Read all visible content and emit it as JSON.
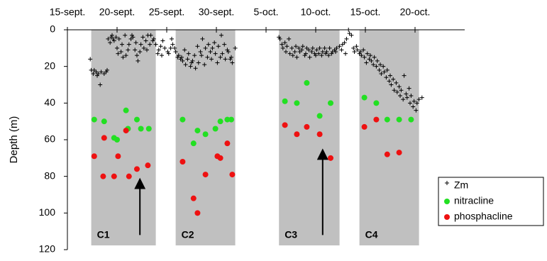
{
  "chart_data": {
    "type": "scatter",
    "ylabel": "Depth (m)",
    "xlim": [
      15,
      55
    ],
    "ylim": [
      0,
      120
    ],
    "y_inverted": true,
    "xticks": [
      {
        "value": 15,
        "label": "15-sept."
      },
      {
        "value": 20,
        "label": "20-sept."
      },
      {
        "value": 25,
        "label": "25-sept."
      },
      {
        "value": 30,
        "label": "30-sept."
      },
      {
        "value": 35,
        "label": "5-oct."
      },
      {
        "value": 40,
        "label": "10-oct."
      },
      {
        "value": 45,
        "label": "15-oct."
      },
      {
        "value": 50,
        "label": "20-oct."
      }
    ],
    "yticks": [
      0,
      20,
      40,
      60,
      80,
      100,
      120
    ],
    "regions": [
      {
        "label": "C1",
        "x": [
          17.4,
          23.9
        ],
        "color": "#c0c0c0"
      },
      {
        "label": "C2",
        "x": [
          25.9,
          31.9
        ],
        "color": "#c0c0c0"
      },
      {
        "label": "C3",
        "x": [
          36.3,
          42.4
        ],
        "color": "#c0c0c0"
      },
      {
        "label": "C4",
        "x": [
          44.4,
          50.4
        ],
        "color": "#c0c0c0"
      }
    ],
    "arrows": [
      {
        "x": 22.3,
        "y": [
          112,
          80
        ]
      },
      {
        "x": 40.7,
        "y": [
          112,
          64
        ]
      }
    ],
    "legend": "lower right",
    "series": [
      {
        "name": "Zm",
        "marker": "cross",
        "color": "#000000",
        "x": [
          17.3,
          17.4,
          17.6,
          17.7,
          17.9,
          18.0,
          18.1,
          18.3,
          18.4,
          18.7,
          18.9,
          19.0,
          19.1,
          19.3,
          19.4,
          19.5,
          19.6,
          19.7,
          19.9,
          20.0,
          20.1,
          20.2,
          20.4,
          20.5,
          20.6,
          20.8,
          20.9,
          21.1,
          21.2,
          21.4,
          21.5,
          21.6,
          21.8,
          21.9,
          22.0,
          22.1,
          22.3,
          22.4,
          22.6,
          22.7,
          22.9,
          23.0,
          23.1,
          23.3,
          23.4,
          23.6,
          23.7,
          23.9,
          24.1,
          24.2,
          24.4,
          24.5,
          24.6,
          24.8,
          25.1,
          25.2,
          25.4,
          25.5,
          25.6,
          25.8,
          25.9,
          26.1,
          26.2,
          26.4,
          26.5,
          26.6,
          26.8,
          26.9,
          27.1,
          27.2,
          27.4,
          27.5,
          27.6,
          27.8,
          27.9,
          28.1,
          28.2,
          28.4,
          28.5,
          28.6,
          28.8,
          28.9,
          29.1,
          29.2,
          29.4,
          29.5,
          29.6,
          29.8,
          29.9,
          30.1,
          30.2,
          30.4,
          30.5,
          30.6,
          30.8,
          30.9,
          31.1,
          31.2,
          31.4,
          31.5,
          31.6,
          31.9,
          36.3,
          36.4,
          36.6,
          36.7,
          36.9,
          37.0,
          37.1,
          37.3,
          37.4,
          37.6,
          37.7,
          37.9,
          38.0,
          38.1,
          38.3,
          38.4,
          38.6,
          38.7,
          38.9,
          39.0,
          39.1,
          39.3,
          39.4,
          39.6,
          39.7,
          39.9,
          40.0,
          40.1,
          40.3,
          40.4,
          40.6,
          40.7,
          40.9,
          41.0,
          41.1,
          41.3,
          41.4,
          41.6,
          41.7,
          41.9,
          42.0,
          42.1,
          42.4,
          42.6,
          42.7,
          42.9,
          43.0,
          43.1,
          43.3,
          43.4,
          43.6,
          43.8,
          43.9,
          44.1,
          44.2,
          44.4,
          44.5,
          44.6,
          44.8,
          44.9,
          45.1,
          45.2,
          45.4,
          45.5,
          45.6,
          45.8,
          45.9,
          46.1,
          46.2,
          46.4,
          46.5,
          46.6,
          46.8,
          46.9,
          47.1,
          47.2,
          47.4,
          47.5,
          47.6,
          47.8,
          47.9,
          48.1,
          48.2,
          48.4,
          48.5,
          48.6,
          48.8,
          48.9,
          49.1,
          49.2,
          49.4,
          49.5,
          49.6,
          49.8,
          49.9,
          50.1,
          50.2,
          50.4,
          50.7
        ],
        "values": [
          16,
          22,
          24,
          22,
          23,
          25,
          24,
          30,
          23,
          24,
          23,
          22,
          5,
          7,
          4,
          3,
          5,
          6,
          4,
          10,
          13,
          5,
          12,
          8,
          15,
          3,
          14,
          11,
          8,
          5,
          3,
          4,
          11,
          7,
          14,
          17,
          12,
          8,
          4,
          10,
          6,
          11,
          3,
          8,
          3,
          6,
          5,
          8,
          13,
          11,
          9,
          14,
          6,
          10,
          12,
          13,
          10,
          5,
          8,
          10,
          12,
          15,
          14,
          16,
          15,
          17,
          11,
          19,
          16,
          13,
          20,
          18,
          17,
          14,
          21,
          9,
          18,
          12,
          14,
          5,
          19,
          10,
          15,
          8,
          12,
          16,
          10,
          7,
          13,
          18,
          9,
          15,
          3,
          13,
          8,
          16,
          11,
          12,
          16,
          15,
          18,
          10,
          4,
          5,
          8,
          10,
          7,
          12,
          9,
          5,
          13,
          10,
          14,
          12,
          9,
          15,
          10,
          12,
          11,
          9,
          14,
          13,
          10,
          11,
          15,
          12,
          10,
          13,
          14,
          11,
          13,
          10,
          14,
          12,
          10,
          13,
          12,
          14,
          10,
          13,
          12,
          11,
          12,
          10,
          9,
          11,
          8,
          7,
          13,
          5,
          0,
          2,
          3,
          10,
          12,
          9,
          11,
          13,
          12,
          14,
          11,
          15,
          18,
          13,
          16,
          14,
          17,
          19,
          15,
          20,
          17,
          22,
          19,
          24,
          20,
          23,
          26,
          22,
          28,
          25,
          30,
          27,
          33,
          29,
          34,
          31,
          36,
          33,
          38,
          25,
          35,
          37,
          32,
          40,
          36,
          42,
          39,
          44,
          40,
          38,
          37
        ]
      },
      {
        "name": "nitracline",
        "marker": "dot",
        "color": "#22e022",
        "x": [
          17.7,
          18.7,
          19.7,
          20.0,
          20.9,
          21.1,
          22.0,
          22.4,
          23.2,
          26.6,
          27.7,
          28.1,
          28.9,
          29.9,
          30.4,
          31.1,
          31.5,
          36.9,
          38.1,
          39.1,
          40.4,
          41.5,
          44.9,
          46.1,
          47.2,
          48.4,
          49.6
        ],
        "values": [
          49,
          50,
          59,
          60,
          44,
          54,
          49,
          54,
          54,
          49,
          62,
          55,
          57,
          54,
          50,
          49,
          49,
          39,
          40,
          29,
          47,
          40,
          37,
          40,
          49,
          49,
          49
        ]
      },
      {
        "name": "phosphacline",
        "marker": "dot",
        "color": "#ee1111",
        "x": [
          18.7,
          17.7,
          18.6,
          19.7,
          20.1,
          20.9,
          21.2,
          22.0,
          23.1,
          26.6,
          27.7,
          28.1,
          28.9,
          30.1,
          30.4,
          31.1,
          31.6,
          36.9,
          38.1,
          39.1,
          40.4,
          41.5,
          44.9,
          46.1,
          47.2,
          48.4
        ],
        "values": [
          59,
          69,
          80,
          80,
          69,
          55,
          80,
          76,
          74,
          72,
          92,
          100,
          79,
          69,
          70,
          62,
          79,
          52,
          57,
          53,
          57,
          70,
          53,
          49,
          68,
          67
        ]
      }
    ]
  }
}
